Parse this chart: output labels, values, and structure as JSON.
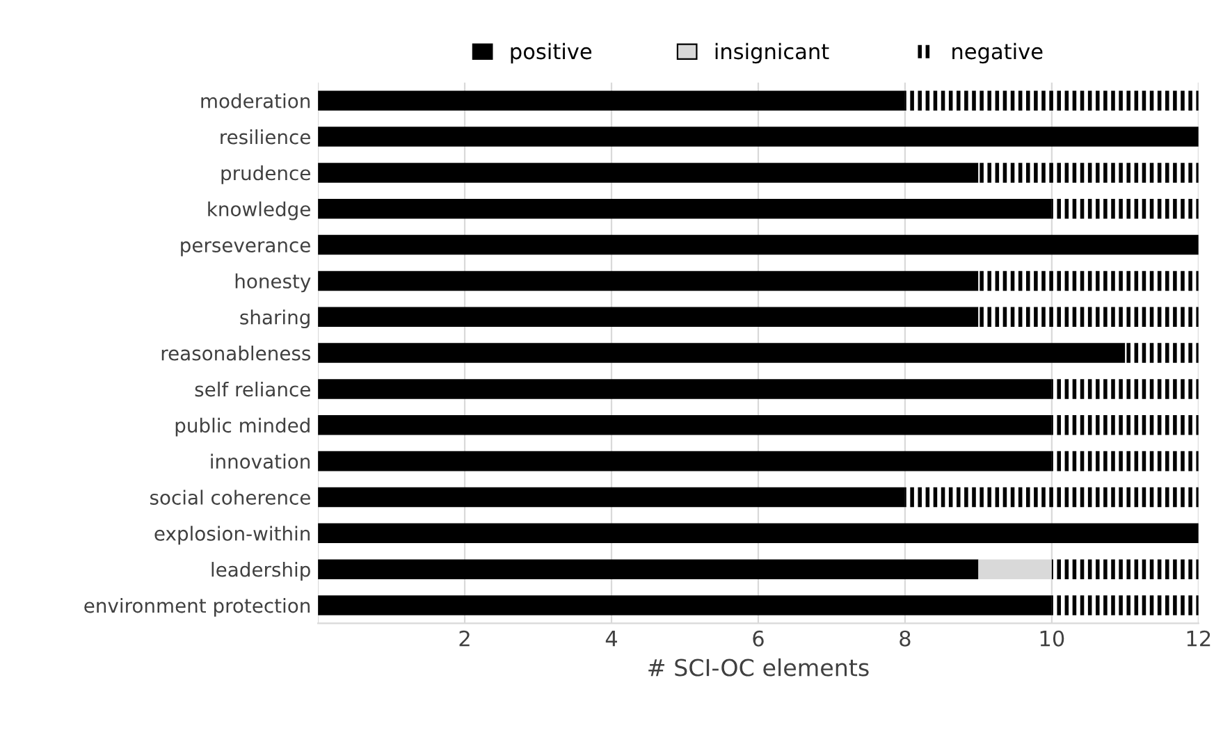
{
  "chart_data": {
    "type": "bar",
    "orientation": "horizontal",
    "stacked": true,
    "xlabel": "# SCI-OC elements",
    "categories": [
      "moderation",
      "resilience",
      "prudence",
      "knowledge",
      "perseverance",
      "honesty",
      "sharing",
      "reasonableness",
      "self reliance",
      "public minded",
      "innovation",
      "social coherence",
      "explosion-within",
      "leadership",
      "environment protection"
    ],
    "series": [
      {
        "name": "positive",
        "color": "#000000",
        "values": [
          8,
          12,
          9,
          10,
          12,
          9,
          9,
          11,
          10,
          10,
          10,
          8,
          12,
          9,
          10
        ]
      },
      {
        "name": "insignicant",
        "color": "#d9d9d9",
        "values": [
          0,
          0,
          0,
          0,
          0,
          0,
          0,
          0,
          0,
          0,
          0,
          0,
          0,
          1,
          0
        ]
      },
      {
        "name": "negative",
        "color": "#000000",
        "values": [
          4,
          0,
          3,
          2,
          0,
          3,
          3,
          1,
          2,
          2,
          2,
          4,
          0,
          2,
          2
        ]
      }
    ],
    "xlim": [
      0,
      12
    ],
    "xticks": [
      {
        "value": 0,
        "label": null
      },
      2,
      4,
      6,
      8,
      10,
      12
    ],
    "grid": "x",
    "legend": "top"
  }
}
